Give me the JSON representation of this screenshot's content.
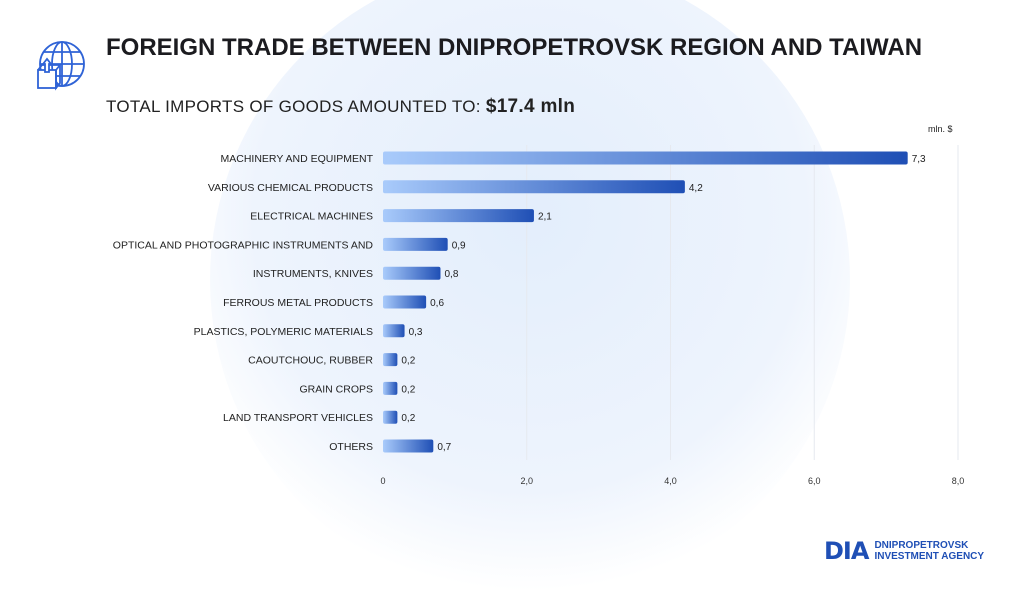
{
  "header": {
    "title": "FOREIGN TRADE BETWEEN DNIPROPETROVSK REGION AND TAIWAN",
    "subtitle_label": "TOTAL IMPORTS OF GOODS AMOUNTED TO:",
    "subtitle_value": "$17.4 mln"
  },
  "logo": {
    "mark": "DIA",
    "line1": "DNIPROPETROVSK",
    "line2": "INVESTMENT AGENCY"
  },
  "colors": {
    "bar_start": "#a9cbfb",
    "bar_end": "#1f4fb5",
    "grid": "#e6e9ef"
  },
  "chart_data": {
    "type": "bar",
    "orientation": "horizontal",
    "unit_label": "mln. $",
    "categories": [
      "MACHINERY AND EQUIPMENT",
      "VARIOUS CHEMICAL PRODUCTS",
      "ELECTRICAL MACHINES",
      "OPTICAL AND PHOTOGRAPHIC INSTRUMENTS AND",
      "INSTRUMENTS, KNIVES",
      "FERROUS METAL PRODUCTS",
      "PLASTICS, POLYMERIC MATERIALS",
      "CAOUTCHOUC, RUBBER",
      "GRAIN CROPS",
      "LAND TRANSPORT VEHICLES",
      "OTHERS"
    ],
    "values": [
      7.3,
      4.2,
      2.1,
      0.9,
      0.8,
      0.6,
      0.3,
      0.2,
      0.2,
      0.2,
      0.7
    ],
    "value_labels": [
      "7,3",
      "4,2",
      "2,1",
      "0,9",
      "0,8",
      "0,6",
      "0,3",
      "0,2",
      "0,2",
      "0,2",
      "0,7"
    ],
    "xlim": [
      0,
      8
    ],
    "xticks": [
      0,
      2,
      4,
      6,
      8
    ],
    "xtick_labels": [
      "0",
      "2,0",
      "4,0",
      "6,0",
      "8,0"
    ],
    "grid": true
  }
}
